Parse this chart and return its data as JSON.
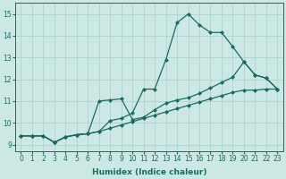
{
  "xlabel": "Humidex (Indice chaleur)",
  "xlim": [
    -0.5,
    23.5
  ],
  "ylim": [
    8.7,
    15.5
  ],
  "xticks": [
    0,
    1,
    2,
    3,
    4,
    5,
    6,
    7,
    8,
    9,
    10,
    11,
    12,
    13,
    14,
    15,
    16,
    17,
    18,
    19,
    20,
    21,
    22,
    23
  ],
  "yticks": [
    9,
    10,
    11,
    12,
    13,
    14,
    15
  ],
  "line_color": "#1a6b5e",
  "bg_color": "#cce8e4",
  "grid_color": "#aacfcb",
  "line1_x": [
    0,
    1,
    2,
    3,
    4,
    5,
    6,
    7,
    8,
    9,
    10,
    11,
    12,
    13,
    14,
    15,
    16,
    17,
    18,
    19,
    20,
    21,
    22,
    23
  ],
  "line1_y": [
    9.4,
    9.4,
    9.4,
    9.1,
    9.35,
    9.45,
    9.5,
    9.6,
    10.1,
    10.2,
    10.45,
    11.55,
    11.55,
    12.9,
    14.6,
    15.0,
    14.5,
    14.15,
    14.15,
    13.5,
    12.8,
    12.2,
    12.05,
    11.55
  ],
  "line2_x": [
    0,
    1,
    2,
    3,
    4,
    5,
    6,
    7,
    8,
    9,
    10,
    11,
    12,
    13,
    14,
    15,
    16,
    17,
    18,
    19,
    20,
    21,
    22,
    23
  ],
  "line2_y": [
    9.4,
    9.4,
    9.4,
    9.1,
    9.35,
    9.45,
    9.5,
    11.0,
    11.05,
    11.1,
    10.15,
    10.25,
    10.6,
    10.9,
    11.05,
    11.15,
    11.35,
    11.6,
    11.85,
    12.1,
    12.8,
    12.2,
    12.05,
    11.55
  ],
  "line3_x": [
    0,
    1,
    2,
    3,
    4,
    5,
    6,
    7,
    8,
    9,
    10,
    11,
    12,
    13,
    14,
    15,
    16,
    17,
    18,
    19,
    20,
    21,
    22,
    23
  ],
  "line3_y": [
    9.4,
    9.4,
    9.4,
    9.1,
    9.35,
    9.45,
    9.5,
    9.6,
    9.75,
    9.9,
    10.05,
    10.2,
    10.35,
    10.5,
    10.65,
    10.8,
    10.95,
    11.1,
    11.25,
    11.4,
    11.5,
    11.5,
    11.55,
    11.55
  ]
}
